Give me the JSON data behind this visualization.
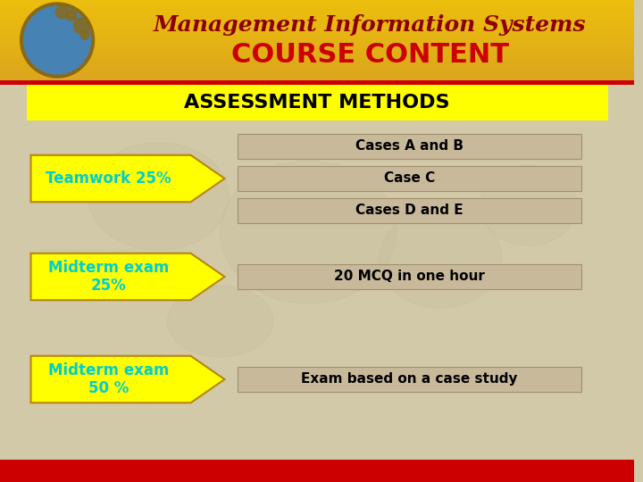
{
  "title_line1": "Management Information Systems",
  "title_line2": "COURSE CONTENT",
  "title_line1_color": "#8B0000",
  "title_line2_color": "#CC0000",
  "header_bg_color": "#DAA520",
  "header_gradient_top": "#FFD700",
  "header_gradient_bottom": "#B8860B",
  "assessment_banner_text": "ASSESSMENT METHODS",
  "assessment_banner_bg": "#FFFF00",
  "assessment_banner_text_color": "#000000",
  "body_bg_color": "#D2C9A8",
  "arrow_color": "#FFFF00",
  "arrow_border_color": "#B8860B",
  "arrow_labels": [
    "Teamwork 25%",
    "Midterm exam\n25%",
    "Midterm exam\n50 %"
  ],
  "arrow_label_color": "#00CED1",
  "box_bg_color": "#C8B99A",
  "box_border_color": "#A09070",
  "boxes": [
    [
      "Cases A and B",
      "Case C",
      "Cases D and E"
    ],
    [
      "20 MCQ in one hour"
    ],
    [
      "Exam based on a case study"
    ]
  ],
  "box_text_color": "#000000",
  "bottom_bar_color": "#CC0000",
  "footer_bar_color": "#8B0000"
}
